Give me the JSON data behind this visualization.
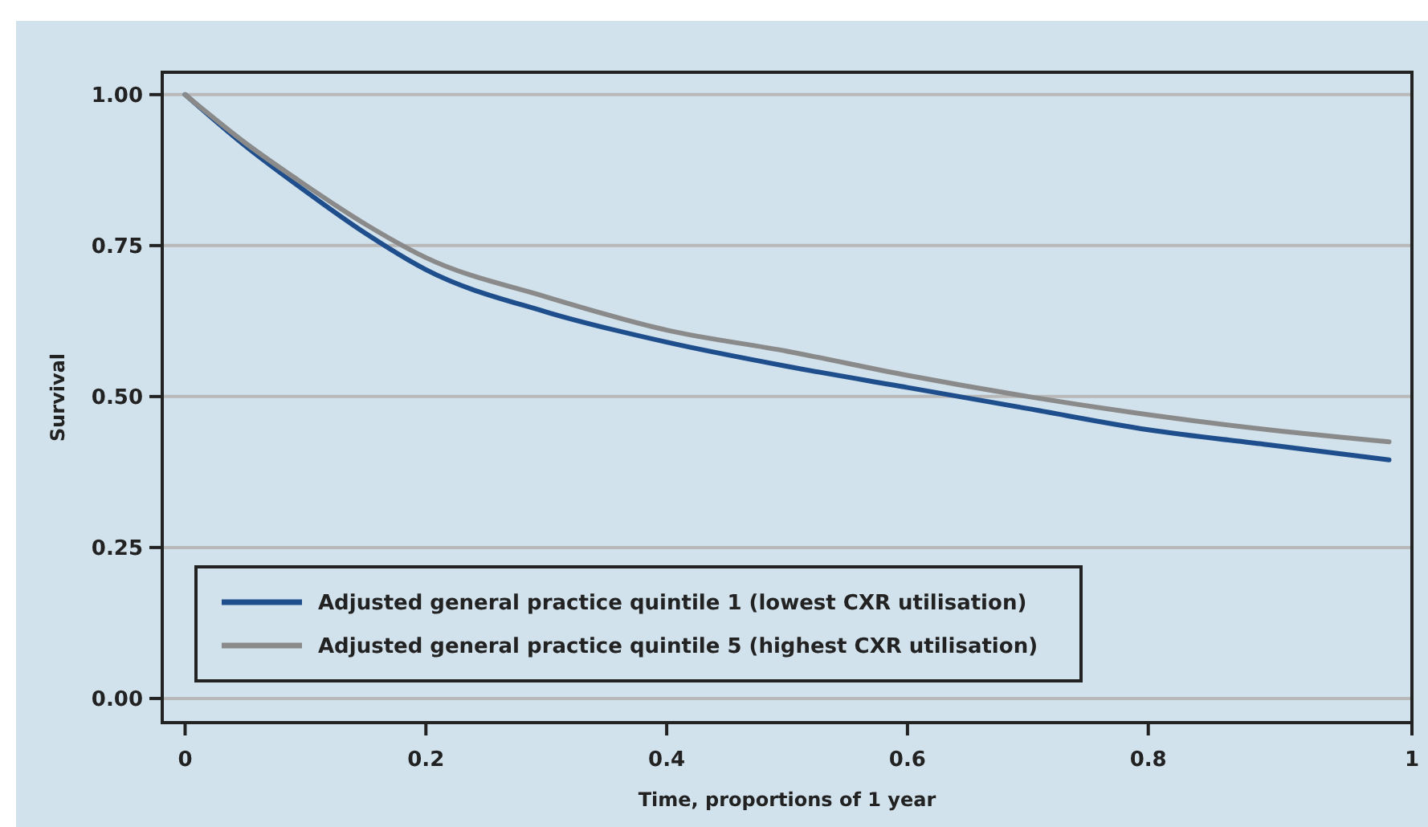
{
  "chart_data": {
    "type": "line",
    "xlabel": "Time, proportions of 1 year",
    "ylabel": "Survival",
    "x": [
      0,
      0.05,
      0.1,
      0.15,
      0.2,
      0.3,
      0.4,
      0.5,
      0.6,
      0.7,
      0.8,
      0.9,
      1.0
    ],
    "series": [
      {
        "name": "Adjusted general practice quintile 1 (lowest CXR utilisation)",
        "color": "#1f4e8c",
        "values": [
          1.0,
          0.915,
          0.84,
          0.77,
          0.71,
          0.64,
          0.59,
          0.55,
          0.515,
          0.48,
          0.445,
          0.42,
          0.395
        ]
      },
      {
        "name": "Adjusted general practice quintile 5 (highest CXR utilisation)",
        "color": "#8a8a8a",
        "values": [
          1.0,
          0.92,
          0.85,
          0.785,
          0.73,
          0.665,
          0.61,
          0.575,
          0.535,
          0.5,
          0.47,
          0.445,
          0.425
        ]
      }
    ],
    "xlim": [
      -0.019,
      1.019
    ],
    "xticks": [
      0,
      0.2,
      0.4,
      0.6,
      0.8,
      {
        "value": 1.019,
        "label": "1"
      }
    ],
    "ylim": [
      -0.04,
      1.037
    ],
    "yticks": [
      {
        "value": 0,
        "label": "0.00"
      },
      0.25,
      {
        "value": 0.5,
        "label": "0.50"
      },
      0.75,
      {
        "value": 1,
        "label": "1.00"
      }
    ],
    "grid": "y",
    "legend": "bottom left",
    "marker": "none",
    "line_style": "solid"
  }
}
